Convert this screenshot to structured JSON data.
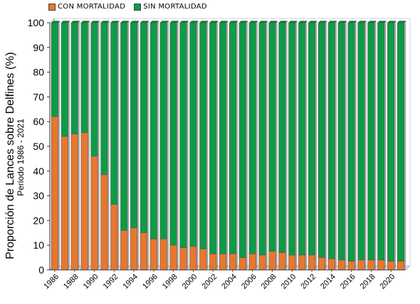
{
  "chart_data": {
    "type": "bar",
    "stacked": true,
    "ylabel": "Proporción de Lances sobre Delfines (%)",
    "ylabel_sub": "Periodo 1986 - 2021",
    "ylim": [
      0,
      100
    ],
    "yticks": [
      0,
      10,
      20,
      30,
      40,
      50,
      60,
      70,
      80,
      90,
      100
    ],
    "x": [
      1986,
      1987,
      1988,
      1989,
      1990,
      1991,
      1992,
      1993,
      1994,
      1995,
      1996,
      1997,
      1998,
      1999,
      2000,
      2001,
      2002,
      2003,
      2004,
      2005,
      2006,
      2007,
      2008,
      2009,
      2010,
      2011,
      2012,
      2013,
      2014,
      2015,
      2016,
      2017,
      2018,
      2019,
      2020,
      2021
    ],
    "xtick_labels": [
      "1986",
      "1988",
      "1990",
      "1992",
      "1994",
      "1996",
      "1998",
      "2000",
      "2002",
      "2004",
      "2006",
      "2008",
      "2010",
      "2012",
      "2014",
      "2016",
      "2018",
      "2020"
    ],
    "legend_position": "top-left",
    "series": [
      {
        "name": "CON MORTALIDAD",
        "color": "#e8772e",
        "values": [
          62,
          54,
          55,
          55.5,
          46,
          38.5,
          26.5,
          16,
          17,
          15,
          12.5,
          12.5,
          10,
          9,
          9.5,
          8.5,
          6.5,
          6.5,
          6.5,
          5,
          6.5,
          6,
          7.5,
          7,
          6,
          6,
          6,
          5,
          4.5,
          4,
          3.5,
          4,
          4,
          4,
          3.5,
          3.5
        ]
      },
      {
        "name": "SIN MORTALIDAD",
        "color": "#0c9c46",
        "values": [
          38,
          46,
          45,
          44.5,
          54,
          61.5,
          73.5,
          84,
          83,
          85,
          87.5,
          87.5,
          90,
          91,
          90.5,
          91.5,
          93.5,
          93.5,
          93.5,
          95,
          93.5,
          94,
          92.5,
          93,
          94,
          94,
          94,
          95,
          95.5,
          96,
          96.5,
          96,
          96,
          96,
          96.5,
          96.5
        ]
      }
    ]
  }
}
